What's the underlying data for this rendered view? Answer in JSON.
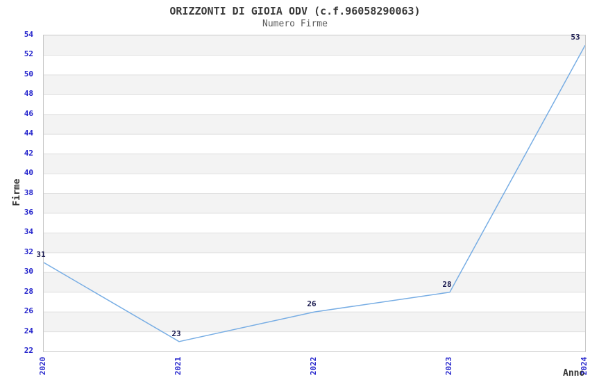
{
  "chart_data": {
    "type": "line",
    "title": "ORIZZONTI DI GIOIA ODV (c.f.96058290063)",
    "subtitle": "Numero Firme",
    "xlabel": "Anno",
    "ylabel": "Firme",
    "categories": [
      "2020",
      "2021",
      "2022",
      "2023",
      "2024"
    ],
    "series": [
      {
        "name": "Numero Firme",
        "values": [
          31,
          23,
          26,
          28,
          53
        ]
      }
    ],
    "data_labels": [
      "31",
      "23",
      "26",
      "28",
      "53"
    ],
    "ylim": [
      22,
      54
    ],
    "ytick_step": 2,
    "ytick_labels": [
      "22",
      "24",
      "26",
      "28",
      "30",
      "32",
      "34",
      "36",
      "38",
      "40",
      "42",
      "44",
      "46",
      "48",
      "50",
      "52",
      "54"
    ],
    "grid": "horizontal-bands-alternating",
    "legend_position": "none",
    "colors": {
      "line": "#77ade4",
      "tick_label": "#2424cc",
      "data_label": "#1b1b50",
      "band_gray": "#f3f3f3",
      "band_white": "#ffffff",
      "grid_line": "#e0e0e0",
      "plot_border": "#c8c8c8",
      "title": "#3a3a3a",
      "subtitle": "#5a5a5a",
      "axis_label": "#333333"
    }
  }
}
